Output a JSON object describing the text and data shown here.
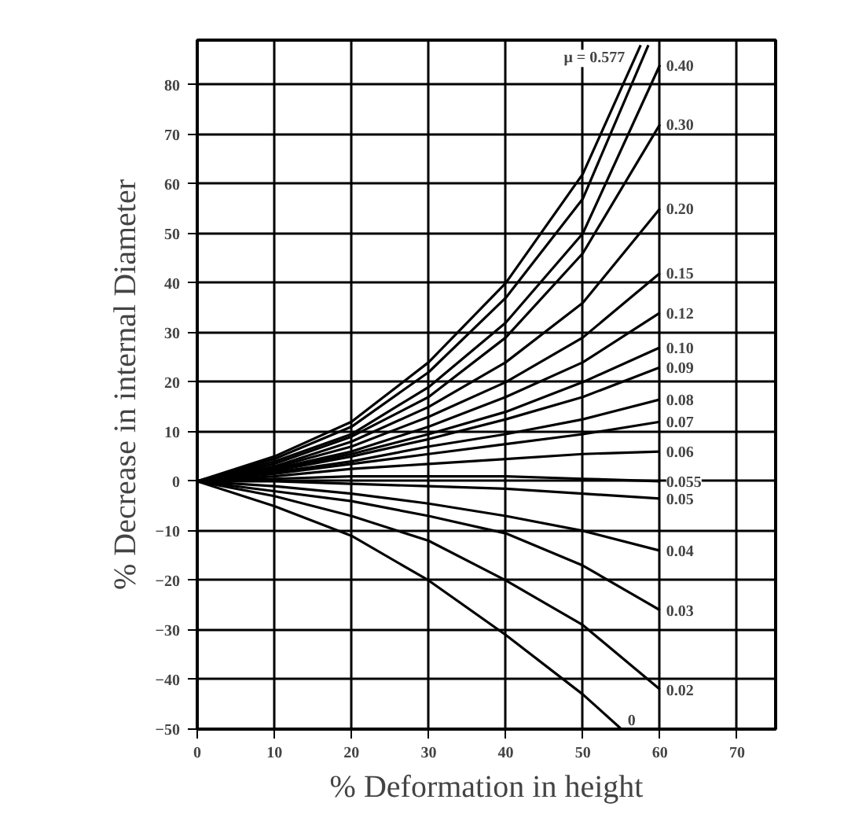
{
  "chart_data": {
    "type": "line",
    "xlabel": "% Deformation in height",
    "ylabel": "% Decrease in internal Diameter",
    "x": [
      0,
      10,
      20,
      30,
      40,
      50,
      60
    ],
    "xlim": [
      0,
      75
    ],
    "ylim": [
      -50,
      89
    ],
    "xticks": [
      0,
      10,
      20,
      30,
      40,
      50,
      60,
      70
    ],
    "yticks": [
      -50,
      -40,
      -30,
      -20,
      -10,
      0,
      10,
      20,
      30,
      40,
      50,
      60,
      70,
      80
    ],
    "grid": true,
    "marker": "none",
    "line_style": "solid",
    "series": [
      {
        "name": "μ = 0.577",
        "color": "#000000",
        "x": [
          0,
          10,
          20,
          30,
          40,
          50,
          57.5
        ],
        "values": [
          0,
          5,
          12,
          24,
          40,
          62,
          88
        ]
      },
      {
        "color": "#000000",
        "x": [
          0,
          10,
          20,
          30,
          40,
          50,
          58.5
        ],
        "values": [
          0,
          4.5,
          11,
          22,
          37,
          57,
          88
        ]
      },
      {
        "name": "0.40",
        "color": "#000000",
        "values": [
          0,
          4,
          9.5,
          19,
          32,
          50,
          84
        ]
      },
      {
        "name": "0.30",
        "color": "#000000",
        "values": [
          0,
          3.5,
          9,
          17,
          29,
          46,
          72
        ]
      },
      {
        "name": "0.20",
        "color": "#000000",
        "values": [
          0,
          3,
          8,
          15,
          24,
          36,
          55
        ]
      },
      {
        "name": "0.15",
        "color": "#000000",
        "values": [
          0,
          2.8,
          7,
          13,
          20,
          29,
          42
        ]
      },
      {
        "name": "0.12",
        "color": "#000000",
        "values": [
          0,
          2.5,
          6,
          11,
          17,
          24,
          34
        ]
      },
      {
        "name": "0.10",
        "color": "#000000",
        "values": [
          0,
          2.3,
          5.5,
          9.5,
          14,
          20,
          27
        ]
      },
      {
        "name": "0.09",
        "color": "#000000",
        "values": [
          0,
          2.1,
          5,
          8.5,
          12.5,
          17,
          23
        ]
      },
      {
        "name": "0.08",
        "color": "#000000",
        "values": [
          0,
          1.8,
          4,
          7,
          9.5,
          12.5,
          16.5
        ]
      },
      {
        "name": "0.07",
        "color": "#000000",
        "values": [
          0,
          1.5,
          3.5,
          5.5,
          7.5,
          9.5,
          12
        ]
      },
      {
        "name": "0.06",
        "color": "#000000",
        "values": [
          0,
          1,
          2.5,
          3.5,
          4.5,
          5.5,
          6
        ]
      },
      {
        "name": "0.055",
        "color": "#000000",
        "values": [
          0,
          0.5,
          1,
          1,
          1,
          0.5,
          0
        ]
      },
      {
        "name": "0.05",
        "color": "#000000",
        "values": [
          0,
          0,
          -0.5,
          -1,
          -1.5,
          -2.5,
          -3.5
        ]
      },
      {
        "name": "0.04",
        "color": "#000000",
        "values": [
          0,
          -1,
          -2.5,
          -4.5,
          -7,
          -10,
          -14
        ]
      },
      {
        "name": "0.03",
        "color": "#000000",
        "values": [
          0,
          -2,
          -4,
          -7,
          -10.5,
          -17,
          -26
        ]
      },
      {
        "name": "0.02",
        "color": "#000000",
        "values": [
          0,
          -3,
          -7,
          -12,
          -20,
          -29,
          -42
        ]
      },
      {
        "name": "0",
        "color": "#000000",
        "x": [
          0,
          10,
          20,
          30,
          40,
          50,
          55
        ],
        "values": [
          0,
          -5,
          -11,
          -20,
          -31,
          -43,
          -50
        ]
      }
    ]
  }
}
